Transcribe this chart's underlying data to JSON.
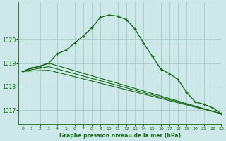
{
  "title": "Graphe pression niveau de la mer (hPa)",
  "bg_color": "#cce8e8",
  "grid_color": "#aacccc",
  "line_color": "#1a6b1a",
  "xlim": [
    -0.5,
    23
  ],
  "ylim": [
    1016.4,
    1021.6
  ],
  "yticks": [
    1017,
    1018,
    1019,
    1020
  ],
  "xticks": [
    0,
    1,
    2,
    3,
    4,
    5,
    6,
    7,
    8,
    9,
    10,
    11,
    12,
    13,
    14,
    15,
    16,
    17,
    18,
    19,
    20,
    21,
    22,
    23
  ],
  "curve1_x": [
    0,
    1,
    2,
    3,
    4,
    5,
    6,
    7,
    8,
    9,
    10,
    11,
    12,
    13,
    14,
    15,
    16,
    17,
    18,
    19,
    20,
    21,
    22,
    23
  ],
  "curve1_y": [
    1018.65,
    1018.8,
    1018.85,
    1019.0,
    1019.4,
    1019.55,
    1019.85,
    1020.15,
    1020.5,
    1020.95,
    1021.05,
    1021.0,
    1020.85,
    1020.45,
    1019.85,
    1019.3,
    1018.75,
    1018.55,
    1018.3,
    1017.75,
    1017.35,
    1017.25,
    1017.1,
    1016.85
  ],
  "curve2_x": [
    0,
    3,
    23
  ],
  "curve2_y": [
    1018.65,
    1019.0,
    1016.85
  ],
  "curve3_x": [
    0,
    3,
    23
  ],
  "curve3_y": [
    1018.65,
    1018.85,
    1016.85
  ],
  "curve4_x": [
    0,
    3,
    23
  ],
  "curve4_y": [
    1018.65,
    1018.7,
    1016.85
  ]
}
